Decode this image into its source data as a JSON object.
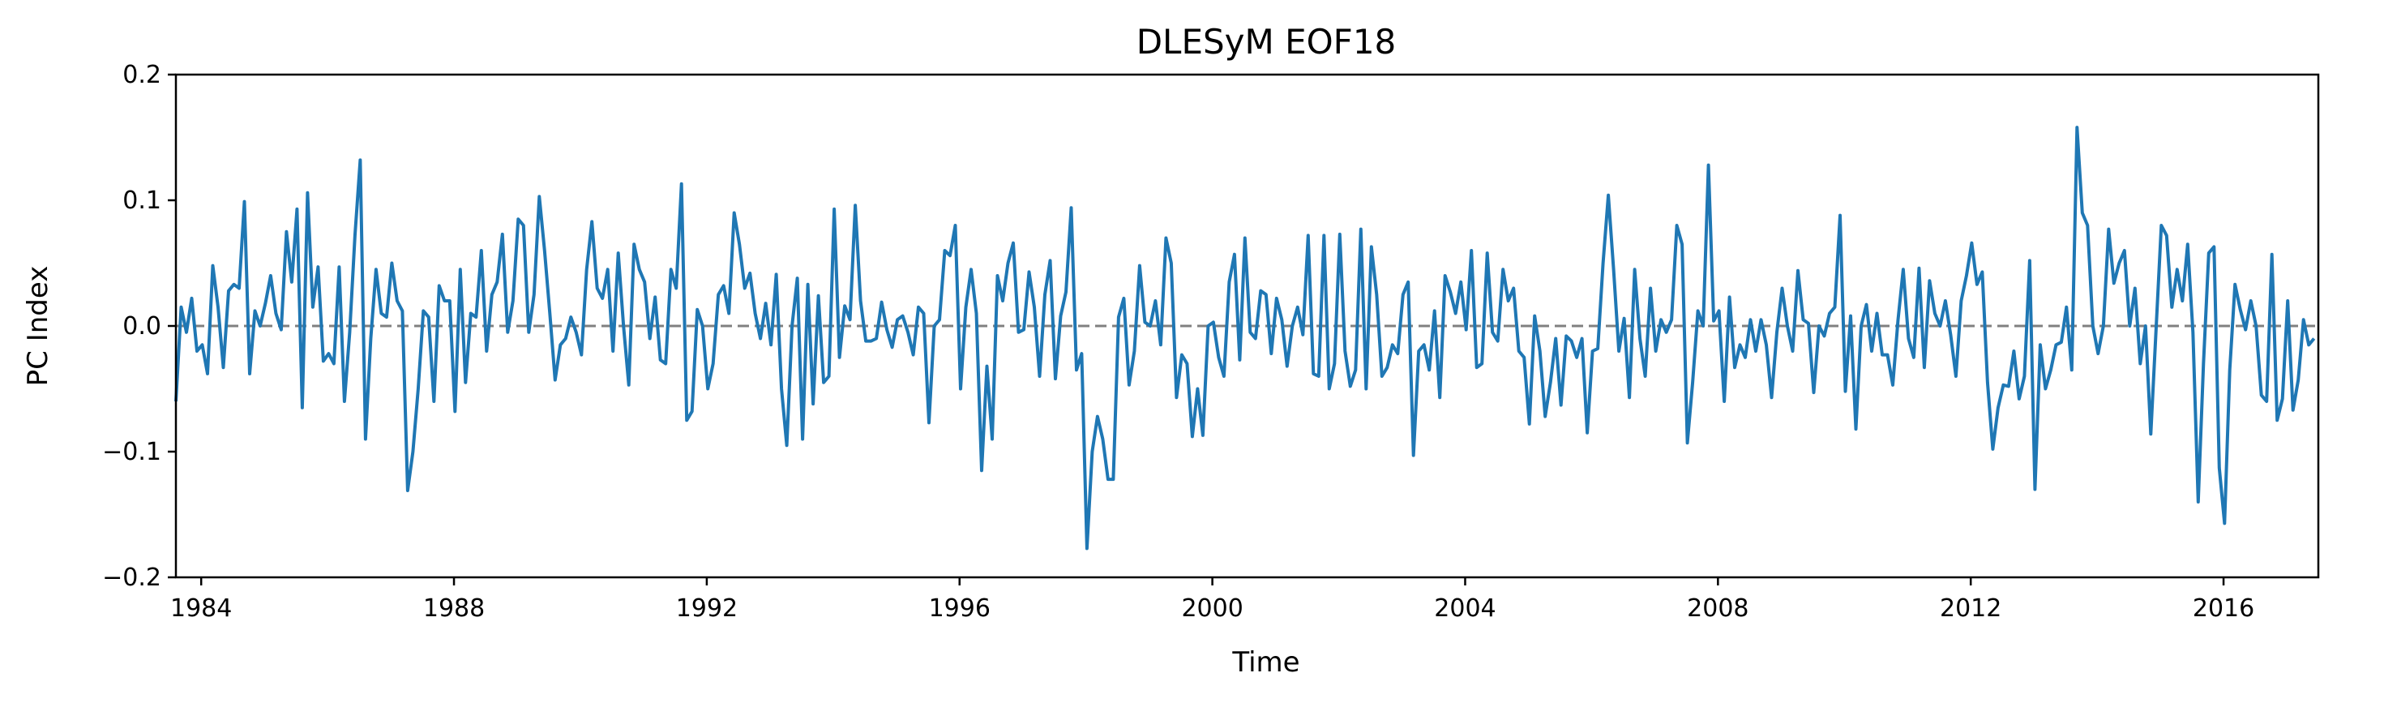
{
  "chart_data": {
    "type": "line",
    "title": "DLESyM  EOF18",
    "xlabel": "Time",
    "ylabel": "PC Index",
    "xlim": [
      1983.6,
      2017.5
    ],
    "ylim": [
      -0.2,
      0.2
    ],
    "x_ticks": [
      1984,
      1988,
      1992,
      1996,
      2000,
      2004,
      2008,
      2012,
      2016
    ],
    "x_tick_labels": [
      "1984",
      "1988",
      "1992",
      "1996",
      "2000",
      "2004",
      "2008",
      "2012",
      "2016"
    ],
    "y_ticks": [
      -0.2,
      -0.1,
      0.0,
      0.1,
      0.2
    ],
    "y_tick_labels": [
      "−0.2",
      "−0.1",
      "0.0",
      "0.1",
      "0.2"
    ],
    "grid": false,
    "legend": "none",
    "reference_line": {
      "y": 0.0,
      "style": "dashed",
      "color": "#808080"
    },
    "series": [
      {
        "color": "#1f77b4",
        "x_start": 1983.6,
        "x_step": 0.08333,
        "values": [
          -0.06,
          0.015,
          -0.005,
          0.022,
          -0.02,
          -0.015,
          -0.038,
          0.048,
          0.015,
          -0.033,
          0.028,
          0.033,
          0.03,
          0.099,
          -0.038,
          0.012,
          0.0,
          0.018,
          0.04,
          0.01,
          -0.003,
          0.075,
          0.035,
          0.093,
          -0.065,
          0.106,
          0.015,
          0.047,
          -0.028,
          -0.022,
          -0.03,
          0.047,
          -0.06,
          -0.005,
          0.072,
          0.132,
          -0.09,
          -0.01,
          0.045,
          0.01,
          0.007,
          0.05,
          0.02,
          0.012,
          -0.131,
          -0.1,
          -0.05,
          0.012,
          0.007,
          -0.06,
          0.032,
          0.02,
          0.02,
          -0.068,
          0.045,
          -0.045,
          0.01,
          0.007,
          0.06,
          -0.02,
          0.025,
          0.035,
          0.073,
          -0.005,
          0.02,
          0.085,
          0.08,
          -0.005,
          0.025,
          0.103,
          0.06,
          0.01,
          -0.043,
          -0.015,
          -0.01,
          0.007,
          -0.005,
          -0.023,
          0.045,
          0.083,
          0.03,
          0.022,
          0.045,
          -0.02,
          0.058,
          0.0,
          -0.047,
          0.065,
          0.045,
          0.035,
          -0.01,
          0.023,
          -0.027,
          -0.03,
          0.045,
          0.03,
          0.113,
          -0.075,
          -0.068,
          0.013,
          0.0,
          -0.05,
          -0.03,
          0.025,
          0.032,
          0.01,
          0.09,
          0.065,
          0.03,
          0.042,
          0.01,
          -0.01,
          0.018,
          -0.015,
          0.041,
          -0.05,
          -0.095,
          0.0,
          0.038,
          -0.09,
          0.033,
          -0.062,
          0.024,
          -0.045,
          -0.04,
          0.093,
          -0.025,
          0.016,
          0.005,
          0.096,
          0.02,
          -0.012,
          -0.012,
          -0.01,
          0.019,
          -0.003,
          -0.017,
          0.005,
          0.008,
          -0.005,
          -0.023,
          0.015,
          0.01,
          -0.077,
          0.0,
          0.005,
          0.06,
          0.056,
          0.08,
          -0.05,
          0.015,
          0.045,
          0.01,
          -0.115,
          -0.032,
          -0.09,
          0.04,
          0.02,
          0.05,
          0.066,
          -0.005,
          -0.003,
          0.043,
          0.015,
          -0.04,
          0.025,
          0.052,
          -0.042,
          0.008,
          0.027,
          0.094,
          -0.035,
          -0.022,
          -0.177,
          -0.1,
          -0.072,
          -0.09,
          -0.122,
          -0.122,
          0.007,
          0.022,
          -0.047,
          -0.02,
          0.048,
          0.003,
          0.0,
          0.02,
          -0.015,
          0.07,
          0.05,
          -0.057,
          -0.023,
          -0.03,
          -0.088,
          -0.05,
          -0.087,
          0.0,
          0.003,
          -0.025,
          -0.04,
          0.035,
          0.057,
          -0.027,
          0.07,
          -0.005,
          -0.01,
          0.028,
          0.025,
          -0.022,
          0.022,
          0.005,
          -0.032,
          0.0,
          0.015,
          -0.007,
          0.072,
          -0.038,
          -0.04,
          0.072,
          -0.05,
          -0.03,
          0.073,
          -0.02,
          -0.048,
          -0.035,
          0.077,
          -0.05,
          0.063,
          0.025,
          -0.04,
          -0.033,
          -0.015,
          -0.022,
          0.025,
          0.035,
          -0.103,
          -0.02,
          -0.015,
          -0.035,
          0.012,
          -0.057,
          0.04,
          0.027,
          0.01,
          0.035,
          -0.003,
          0.06,
          -0.033,
          -0.03,
          0.058,
          -0.005,
          -0.012,
          0.045,
          0.02,
          0.03,
          -0.02,
          -0.025,
          -0.078,
          0.008,
          -0.02,
          -0.072,
          -0.045,
          -0.01,
          -0.063,
          -0.008,
          -0.012,
          -0.025,
          -0.01,
          -0.085,
          -0.02,
          -0.018,
          0.05,
          0.104,
          0.045,
          -0.02,
          0.006,
          -0.057,
          0.045,
          -0.01,
          -0.04,
          0.03,
          -0.02,
          0.005,
          -0.005,
          0.005,
          0.08,
          0.065,
          -0.093,
          -0.045,
          0.012,
          0.0,
          0.128,
          0.004,
          0.012,
          -0.06,
          0.023,
          -0.033,
          -0.015,
          -0.025,
          0.005,
          -0.02,
          0.005,
          -0.015,
          -0.057,
          -0.005,
          0.03,
          0.0,
          -0.02,
          0.044,
          0.005,
          0.002,
          -0.053,
          0.0,
          -0.008,
          0.01,
          0.015,
          0.088,
          -0.052,
          0.008,
          -0.082,
          0.0,
          0.017,
          -0.02,
          0.01,
          -0.023,
          -0.023,
          -0.047,
          0.005,
          0.045,
          -0.01,
          -0.025,
          0.046,
          -0.033,
          0.036,
          0.01,
          0.0,
          0.02,
          -0.007,
          -0.04,
          0.02,
          0.04,
          0.066,
          0.033,
          0.043,
          -0.045,
          -0.098,
          -0.065,
          -0.047,
          -0.048,
          -0.02,
          -0.058,
          -0.04,
          0.052,
          -0.13,
          -0.015,
          -0.05,
          -0.035,
          -0.015,
          -0.013,
          0.015,
          -0.035,
          0.158,
          0.09,
          0.08,
          0.0,
          -0.022,
          0.0,
          0.077,
          0.034,
          0.05,
          0.06,
          0.0,
          0.03,
          -0.03,
          0.0,
          -0.086,
          -0.003,
          0.08,
          0.072,
          0.015,
          0.045,
          0.02,
          0.065,
          -0.005,
          -0.14,
          -0.03,
          0.058,
          0.063,
          -0.113,
          -0.157,
          -0.035,
          0.033,
          0.013,
          -0.003,
          0.02,
          0.0,
          -0.055,
          -0.06,
          0.057,
          -0.075,
          -0.058,
          0.02,
          -0.067,
          -0.043,
          0.005,
          -0.015,
          -0.01
        ]
      }
    ]
  }
}
